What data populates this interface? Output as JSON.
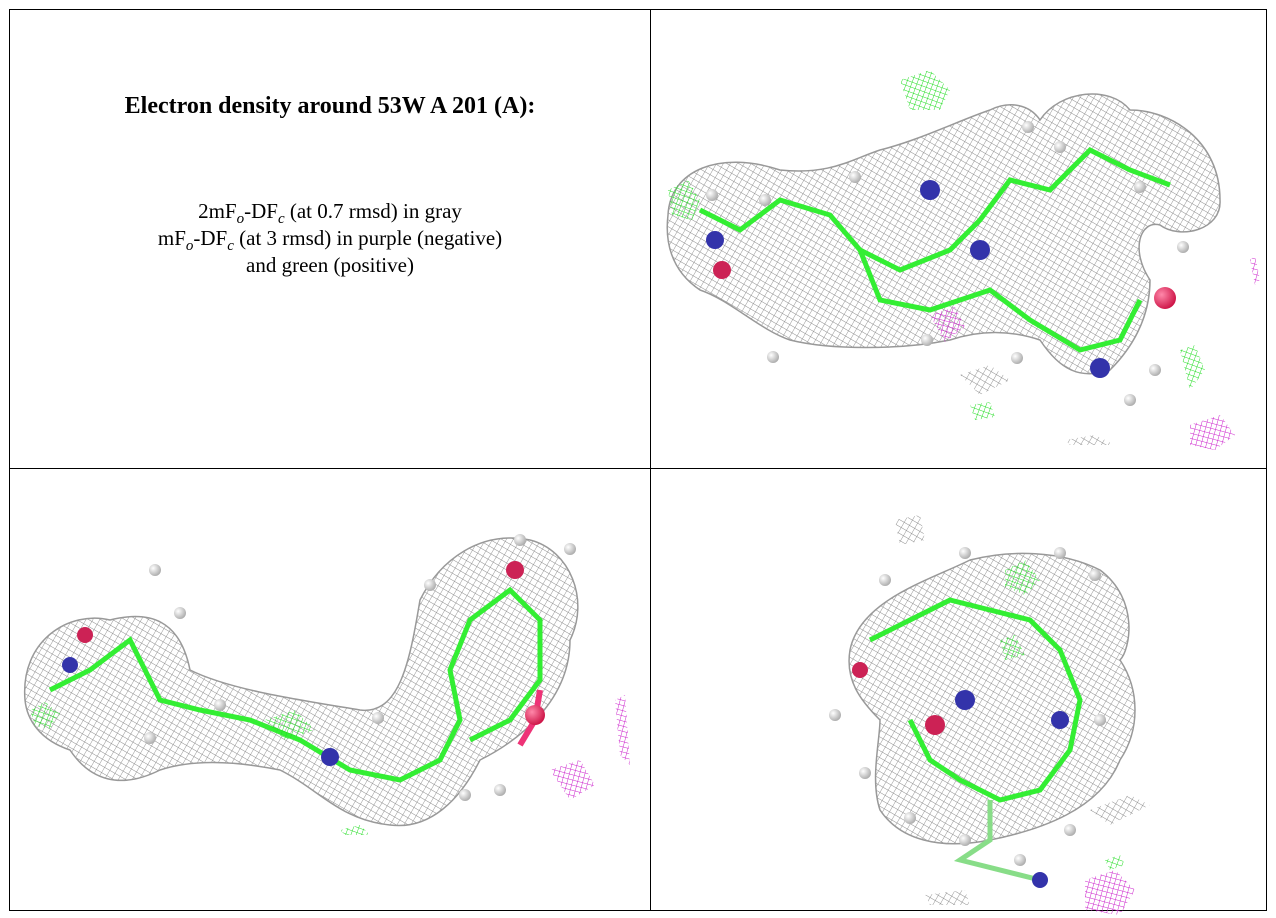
{
  "title": "Electron density around 53W A 201 (A):",
  "caption": {
    "lines": [
      [
        "2mF",
        "o",
        "-DF",
        "c",
        " (at 0.7 rmsd) in gray"
      ],
      [
        "mF",
        "o",
        "-DF",
        "c",
        " (at 3 rmsd) in purple (negative)"
      ],
      [
        "and green (positive)"
      ]
    ]
  }
}
